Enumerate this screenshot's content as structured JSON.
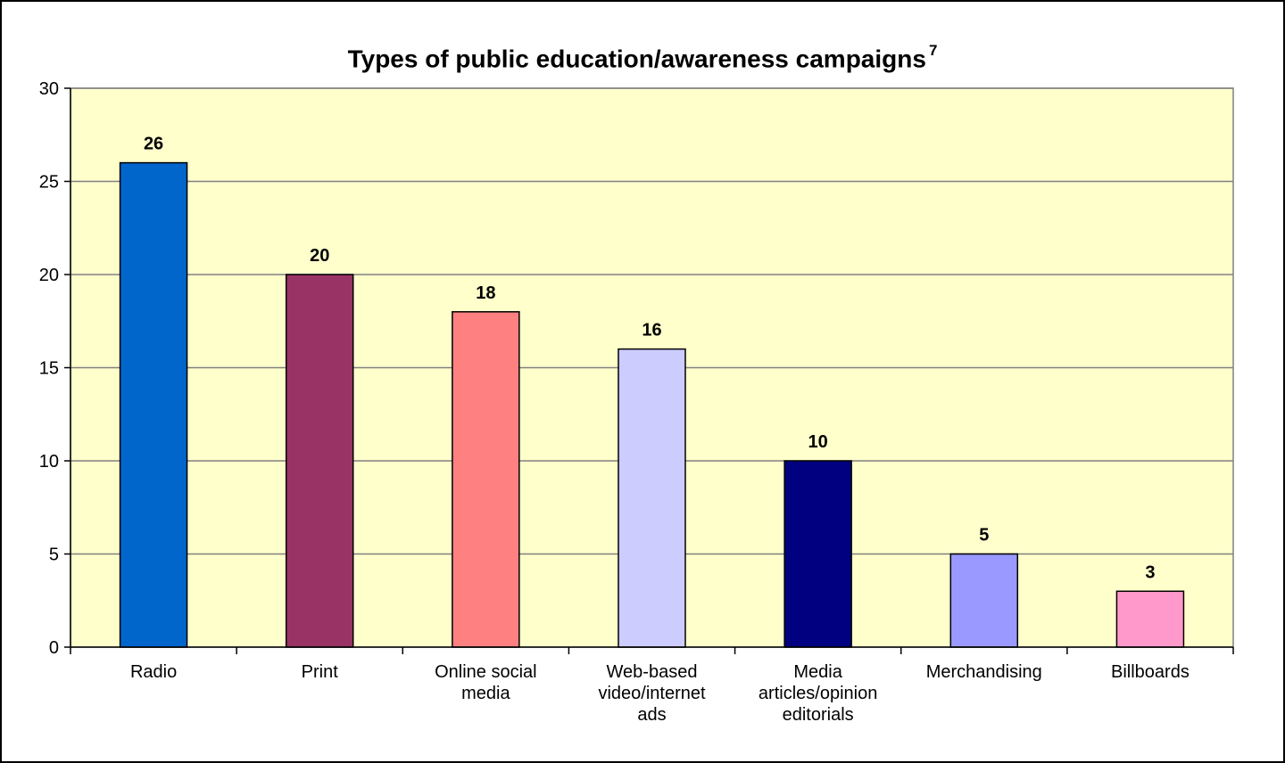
{
  "chart_data": {
    "type": "bar",
    "title": "Types of public education/awareness campaigns",
    "title_superscript": "7",
    "categories": [
      "Radio",
      "Print",
      "Online social media",
      "Web-based video/internet ads",
      "Media articles/opinion editorials",
      "Merchandising",
      "Billboards"
    ],
    "category_label_lines": [
      [
        "Radio"
      ],
      [
        "Print"
      ],
      [
        "Online social",
        "media"
      ],
      [
        "Web-based",
        "video/internet",
        "ads"
      ],
      [
        "Media",
        "articles/opinion",
        "editorials"
      ],
      [
        "Merchandising"
      ],
      [
        "Billboards"
      ]
    ],
    "values": [
      26,
      20,
      18,
      16,
      10,
      5,
      3
    ],
    "data_labels": [
      "26",
      "20",
      "18",
      "16",
      "10",
      "5",
      "3"
    ],
    "bar_colors": [
      "#0066cc",
      "#993366",
      "#ff8080",
      "#ccccff",
      "#000080",
      "#9999ff",
      "#ff99cc"
    ],
    "ylim": [
      0,
      30
    ],
    "yticks": [
      0,
      5,
      10,
      15,
      20,
      25,
      30
    ],
    "ytick_labels": [
      "0",
      "5",
      "10",
      "15",
      "20",
      "25",
      "30"
    ],
    "xlabel": "",
    "ylabel": "",
    "grid": true,
    "plot_background": "#ffffcc",
    "gridline_color": "#808080"
  }
}
